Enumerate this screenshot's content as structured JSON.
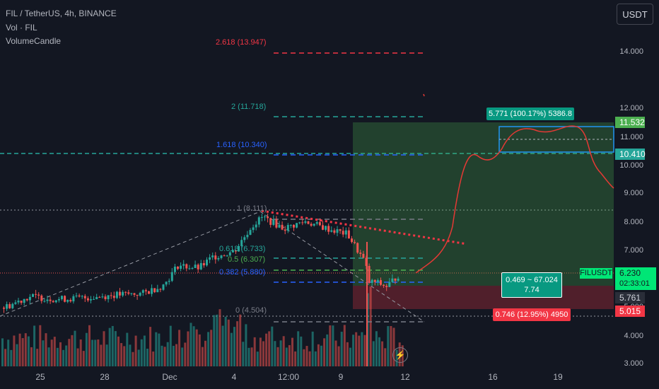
{
  "header": {
    "title": "FIL / TetherUS, 4h, BINANCE",
    "vol": "Vol · FIL",
    "indicator": "VolumeCandle"
  },
  "currency_button": "USDT",
  "price_axis": {
    "ticks": [
      "14.000",
      "12.000",
      "11.000",
      "10.000",
      "9.000",
      "8.000",
      "7.000",
      "5.000",
      "4.000",
      "3.000"
    ],
    "badges": {
      "top_target": "11.532",
      "entry_zone": "10.410",
      "symbol": "FILUSDT",
      "last_price": "6.230",
      "countdown": "02:33:01",
      "mid": "5.761",
      "stop": "5.015"
    }
  },
  "time_axis": {
    "labels": [
      "25",
      "28",
      "Dec",
      "4",
      "12:00",
      "9",
      "12",
      "16",
      "19"
    ]
  },
  "fib_levels": [
    {
      "label": "2.618 (13.947)",
      "color": "#f23645"
    },
    {
      "label": "2 (11.718)",
      "color": "#26a69a"
    },
    {
      "label": "1.618 (10.340)",
      "color": "#2962ff"
    },
    {
      "label": "1 (8.111)",
      "color": "#787b86"
    },
    {
      "label": "0.618 (6.733)",
      "color": "#26a69a"
    },
    {
      "label": "0.5 (6.307)",
      "color": "#4caf50"
    },
    {
      "label": "0.382 (5.880)",
      "color": "#2962ff"
    },
    {
      "label": "0 (4.504)",
      "color": "#787b86"
    }
  ],
  "position_tool": {
    "target_label": "5.771 (100.17%) 5386.8",
    "center_label_line1": "0.469 ~ 67.024",
    "center_label_line2": "7.74",
    "stop_label": "0.746 (12.95%) 4950"
  },
  "colors": {
    "background": "#131722",
    "up": "#26a69a",
    "down": "#ef5350",
    "profit_zone": "rgba(76,175,80,0.25)",
    "loss_zone": "rgba(242,54,69,0.25)",
    "box": "#2196f3",
    "projection": "#e53935"
  },
  "chart_data": {
    "type": "candlestick",
    "symbol": "FIL / TetherUS",
    "interval": "4h",
    "exchange": "BINANCE",
    "y_axis_ticks": [
      3.0,
      4.0,
      5.0,
      7.0,
      8.0,
      9.0,
      10.0,
      11.0,
      12.0,
      14.0
    ],
    "last_price": 6.23,
    "fibonacci_extension": [
      {
        "ratio": 2.618,
        "price": 13.947
      },
      {
        "ratio": 2,
        "price": 11.718
      },
      {
        "ratio": 1.618,
        "price": 10.34
      },
      {
        "ratio": 1,
        "price": 8.111
      },
      {
        "ratio": 0.618,
        "price": 6.733
      },
      {
        "ratio": 0.5,
        "price": 6.307
      },
      {
        "ratio": 0.382,
        "price": 5.88
      },
      {
        "ratio": 0,
        "price": 4.504
      }
    ],
    "long_position": {
      "target_price": 11.532,
      "entry_price": 5.761,
      "stop_price": 5.015,
      "target_pct": 100.17,
      "stop_pct": 12.95,
      "risk_reward": 7.74
    }
  }
}
